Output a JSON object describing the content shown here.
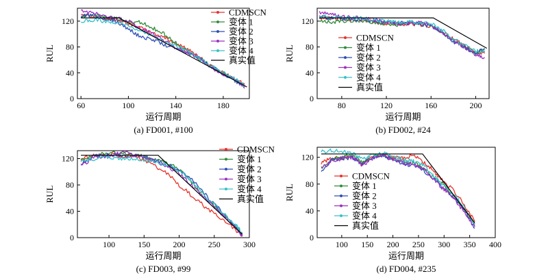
{
  "legend_labels": [
    "CDMSCN",
    "变体 1",
    "变体 2",
    "变体 3",
    "变体 4",
    "真实值"
  ],
  "series_colors": [
    "#e8312a",
    "#2e8b3a",
    "#2f4fb5",
    "#9b30c0",
    "#36c0c8",
    "#000000"
  ],
  "chart_data": [
    {
      "type": "line",
      "caption": "(a) FD001, #100",
      "xlabel": "运行周期",
      "ylabel": "RUL",
      "xlim": [
        57,
        202
      ],
      "ylim": [
        0,
        140
      ],
      "xticks": [
        60,
        100,
        140,
        180
      ],
      "yticks": [
        0,
        40,
        80,
        120
      ],
      "legend_position": "top-right",
      "true_rul": {
        "x": [
          60,
          92,
          200
        ],
        "y": [
          125,
          125,
          18
        ]
      },
      "series": [
        {
          "name": "CDMSCN",
          "x": [
            60,
            70,
            80,
            90,
            100,
            110,
            120,
            130,
            140,
            150,
            160,
            170,
            180,
            190,
            198
          ],
          "y": [
            128,
            128,
            124,
            122,
            116,
            110,
            102,
            94,
            86,
            76,
            64,
            50,
            40,
            30,
            22
          ]
        },
        {
          "name": "变体 1",
          "x": [
            60,
            70,
            80,
            90,
            100,
            110,
            120,
            130,
            140,
            150,
            160,
            170,
            180,
            190,
            198
          ],
          "y": [
            127,
            130,
            126,
            124,
            120,
            118,
            110,
            100,
            86,
            74,
            62,
            50,
            40,
            30,
            20
          ]
        },
        {
          "name": "变体 2",
          "x": [
            60,
            70,
            80,
            90,
            100,
            110,
            120,
            130,
            140,
            150,
            160,
            170,
            180,
            190,
            198
          ],
          "y": [
            128,
            130,
            124,
            120,
            108,
            96,
            92,
            84,
            78,
            72,
            62,
            50,
            38,
            28,
            18
          ]
        },
        {
          "name": "变体 3",
          "x": [
            60,
            70,
            80,
            90,
            100,
            110,
            120,
            130,
            140,
            150,
            160,
            170,
            180,
            190,
            198
          ],
          "y": [
            136,
            132,
            128,
            125,
            120,
            110,
            100,
            90,
            80,
            72,
            62,
            48,
            38,
            30,
            16
          ]
        },
        {
          "name": "变体 4",
          "x": [
            60,
            70,
            80,
            90,
            100,
            110,
            120,
            130,
            140,
            150,
            160,
            170,
            180,
            190,
            198
          ],
          "y": [
            120,
            122,
            120,
            118,
            112,
            104,
            98,
            90,
            82,
            74,
            62,
            50,
            40,
            30,
            20
          ]
        }
      ]
    },
    {
      "type": "line",
      "caption": "(b) FD002, #24",
      "xlabel": "运行周期",
      "ylabel": "RUL",
      "xlim": [
        58,
        212
      ],
      "ylim": [
        0,
        140
      ],
      "xticks": [
        80,
        120,
        160,
        200
      ],
      "yticks": [
        0,
        40,
        80,
        120
      ],
      "legend_position": "bottom-left",
      "true_rul": {
        "x": [
          60,
          162,
          210
        ],
        "y": [
          125,
          125,
          78
        ]
      },
      "series": [
        {
          "name": "CDMSCN",
          "x": [
            60,
            70,
            80,
            90,
            100,
            110,
            120,
            130,
            140,
            150,
            160,
            170,
            180,
            190,
            200,
            208
          ],
          "y": [
            126,
            124,
            124,
            123,
            122,
            118,
            116,
            116,
            115,
            115,
            112,
            104,
            92,
            82,
            72,
            70
          ]
        },
        {
          "name": "变体 1",
          "x": [
            60,
            70,
            80,
            90,
            100,
            110,
            120,
            130,
            140,
            150,
            160,
            170,
            180,
            190,
            200,
            208
          ],
          "y": [
            120,
            118,
            120,
            121,
            119,
            118,
            116,
            115,
            116,
            117,
            114,
            102,
            90,
            80,
            70,
            76
          ]
        },
        {
          "name": "变体 2",
          "x": [
            60,
            70,
            80,
            90,
            100,
            110,
            120,
            130,
            140,
            150,
            160,
            170,
            180,
            190,
            200,
            208
          ],
          "y": [
            126,
            125,
            124,
            123,
            122,
            120,
            118,
            117,
            117,
            116,
            112,
            104,
            88,
            80,
            70,
            78
          ]
        },
        {
          "name": "变体 3",
          "x": [
            60,
            70,
            80,
            90,
            100,
            110,
            120,
            130,
            140,
            150,
            160,
            170,
            180,
            190,
            200,
            208
          ],
          "y": [
            134,
            130,
            128,
            126,
            124,
            122,
            118,
            116,
            117,
            118,
            114,
            102,
            90,
            78,
            68,
            64
          ]
        },
        {
          "name": "变体 4",
          "x": [
            60,
            70,
            80,
            90,
            100,
            110,
            120,
            130,
            140,
            150,
            160,
            170,
            180,
            190,
            200,
            208
          ],
          "y": [
            128,
            126,
            126,
            125,
            124,
            122,
            120,
            118,
            119,
            118,
            116,
            106,
            92,
            82,
            74,
            72
          ]
        }
      ]
    },
    {
      "type": "line",
      "caption": "(c) FD003, #99",
      "xlabel": "运行周期",
      "ylabel": "RUL",
      "xlim": [
        55,
        300
      ],
      "ylim": [
        0,
        132
      ],
      "xticks": [
        100,
        150,
        200,
        250,
        300
      ],
      "yticks": [
        0,
        40,
        80,
        120
      ],
      "legend_position": "top-right",
      "true_rul": {
        "x": [
          60,
          170,
          290
        ],
        "y": [
          125,
          125,
          5
        ]
      },
      "series": [
        {
          "name": "CDMSCN",
          "x": [
            60,
            80,
            100,
            120,
            140,
            160,
            180,
            200,
            220,
            240,
            260,
            280,
            290
          ],
          "y": [
            120,
            125,
            126,
            124,
            122,
            112,
            100,
            80,
            62,
            44,
            28,
            12,
            4
          ]
        },
        {
          "name": "变体 1",
          "x": [
            60,
            80,
            100,
            120,
            140,
            160,
            180,
            200,
            220,
            240,
            260,
            280,
            290
          ],
          "y": [
            118,
            126,
            128,
            128,
            126,
            118,
            115,
            104,
            82,
            58,
            38,
            18,
            6
          ]
        },
        {
          "name": "变体 2",
          "x": [
            60,
            80,
            100,
            120,
            140,
            160,
            180,
            200,
            220,
            240,
            260,
            280,
            290
          ],
          "y": [
            112,
            124,
            126,
            125,
            124,
            120,
            112,
            104,
            86,
            62,
            40,
            18,
            4
          ]
        },
        {
          "name": "变体 3",
          "x": [
            60,
            80,
            100,
            120,
            140,
            160,
            180,
            200,
            220,
            240,
            260,
            280,
            290
          ],
          "y": [
            110,
            122,
            124,
            130,
            124,
            118,
            110,
            98,
            78,
            56,
            36,
            16,
            2
          ]
        },
        {
          "name": "变体 4",
          "x": [
            60,
            80,
            100,
            120,
            140,
            160,
            180,
            200,
            220,
            240,
            260,
            280,
            290
          ],
          "y": [
            116,
            120,
            122,
            120,
            118,
            116,
            112,
            102,
            82,
            60,
            40,
            20,
            6
          ]
        }
      ]
    },
    {
      "type": "line",
      "caption": "(d) FD004, #235",
      "xlabel": "运行周期",
      "ylabel": "RUL",
      "xlim": [
        52,
        400
      ],
      "ylim": [
        0,
        135
      ],
      "xticks": [
        100,
        150,
        200,
        250,
        300,
        350,
        400
      ],
      "yticks": [
        0,
        40,
        80,
        120
      ],
      "legend_position": "bottom-left",
      "true_rul": {
        "x": [
          60,
          258,
          360
        ],
        "y": [
          125,
          125,
          22
        ]
      },
      "series": [
        {
          "name": "CDMSCN",
          "x": [
            60,
            80,
            100,
            120,
            140,
            160,
            180,
            200,
            220,
            240,
            260,
            280,
            300,
            320,
            340,
            360
          ],
          "y": [
            112,
            118,
            118,
            122,
            110,
            120,
            124,
            120,
            118,
            124,
            112,
            100,
            82,
            70,
            48,
            24
          ]
        },
        {
          "name": "变体 1",
          "x": [
            60,
            80,
            100,
            120,
            140,
            160,
            180,
            200,
            220,
            240,
            260,
            280,
            300,
            320,
            340,
            360
          ],
          "y": [
            105,
            118,
            120,
            124,
            112,
            122,
            124,
            118,
            114,
            112,
            104,
            90,
            78,
            62,
            42,
            18
          ]
        },
        {
          "name": "变体 2",
          "x": [
            60,
            80,
            100,
            120,
            140,
            160,
            180,
            200,
            220,
            240,
            260,
            280,
            300,
            320,
            340,
            360
          ],
          "y": [
            100,
            116,
            118,
            120,
            110,
            120,
            122,
            118,
            110,
            108,
            100,
            88,
            74,
            60,
            40,
            14
          ]
        },
        {
          "name": "变体 3",
          "x": [
            60,
            80,
            100,
            120,
            140,
            160,
            180,
            200,
            220,
            240,
            260,
            280,
            300,
            320,
            340,
            360
          ],
          "y": [
            102,
            114,
            118,
            120,
            108,
            118,
            122,
            116,
            112,
            110,
            102,
            86,
            72,
            58,
            38,
            16
          ]
        },
        {
          "name": "变体 4",
          "x": [
            60,
            80,
            100,
            120,
            140,
            160,
            180,
            200,
            220,
            240,
            260,
            280,
            300,
            320,
            340,
            360
          ],
          "y": [
            128,
            130,
            128,
            126,
            118,
            124,
            126,
            122,
            116,
            114,
            108,
            92,
            78,
            64,
            44,
            20
          ]
        }
      ]
    }
  ]
}
